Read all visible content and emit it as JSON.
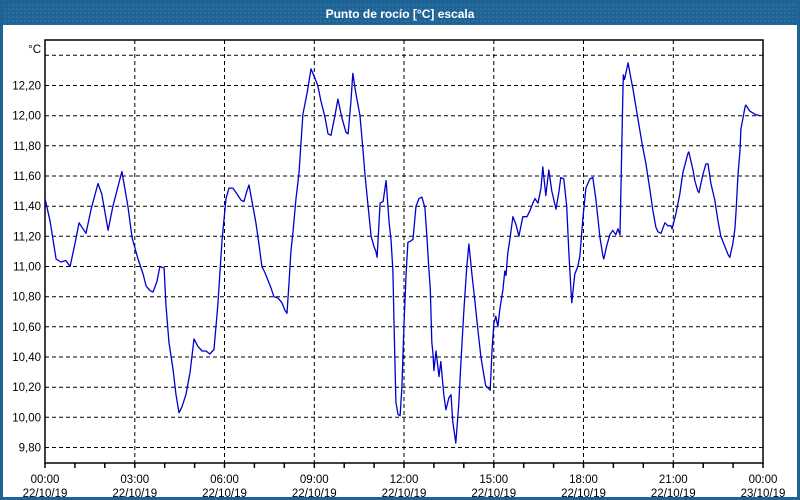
{
  "window": {
    "title": "Punto de rocío [°C] escala",
    "titlebar_color": "#1e6396",
    "border_color": "#1e6396",
    "background_color": "#ffffff"
  },
  "chart_data": {
    "type": "line",
    "title": "Punto de rocío [°C] escala",
    "xlabel": "",
    "ylabel": "°C",
    "legend": "none",
    "grid": "dashed",
    "x_axis": {
      "range_hours": [
        0,
        24
      ],
      "minor_tick_interval_hours": 1,
      "major_tick_interval_hours": 3,
      "ticks": [
        {
          "hours": 0,
          "time": "00:00",
          "date": "22/10/19"
        },
        {
          "hours": 3,
          "time": "03:00",
          "date": "22/10/19"
        },
        {
          "hours": 6,
          "time": "06:00",
          "date": "22/10/19"
        },
        {
          "hours": 9,
          "time": "09:00",
          "date": "22/10/19"
        },
        {
          "hours": 12,
          "time": "12:00",
          "date": "22/10/19"
        },
        {
          "hours": 15,
          "time": "15:00",
          "date": "22/10/19"
        },
        {
          "hours": 18,
          "time": "18:00",
          "date": "22/10/19"
        },
        {
          "hours": 21,
          "time": "21:00",
          "date": "22/10/19"
        },
        {
          "hours": 24,
          "time": "00:00",
          "date": "23/10/19"
        }
      ]
    },
    "y_axis": {
      "unit_label": "°C",
      "range": [
        9.67,
        12.49
      ],
      "gridline_values": [
        12.4,
        12.2,
        12.0,
        11.8,
        11.6,
        11.4,
        11.2,
        11.0,
        10.8,
        10.6,
        10.4,
        10.2,
        10.0,
        9.8
      ],
      "tick_labels": [
        {
          "value": 12.2,
          "label": "12,20"
        },
        {
          "value": 12.0,
          "label": "12,00"
        },
        {
          "value": 11.8,
          "label": "11,80"
        },
        {
          "value": 11.6,
          "label": "11,60"
        },
        {
          "value": 11.4,
          "label": "11,40"
        },
        {
          "value": 11.2,
          "label": "11,20"
        },
        {
          "value": 11.0,
          "label": "11,00"
        },
        {
          "value": 10.8,
          "label": "10,80"
        },
        {
          "value": 10.6,
          "label": "10,60"
        },
        {
          "value": 10.4,
          "label": "10,40"
        },
        {
          "value": 10.2,
          "label": "10,20"
        },
        {
          "value": 10.0,
          "label": "10,00"
        },
        {
          "value": 9.8,
          "label": "9,80"
        }
      ]
    },
    "colors": {
      "line": "#0000cd",
      "grid": "#000000",
      "text": "#000000",
      "plot_border": "#000000",
      "background": "#ffffff"
    },
    "series": [
      {
        "name": "Punto de rocío [°C]",
        "points": [
          [
            0.0,
            11.45
          ],
          [
            0.17,
            11.3
          ],
          [
            0.37,
            11.05
          ],
          [
            0.53,
            11.03
          ],
          [
            0.7,
            11.04
          ],
          [
            0.84,
            11.0
          ],
          [
            1.0,
            11.15
          ],
          [
            1.14,
            11.29
          ],
          [
            1.27,
            11.25
          ],
          [
            1.37,
            11.22
          ],
          [
            1.54,
            11.38
          ],
          [
            1.77,
            11.55
          ],
          [
            1.9,
            11.48
          ],
          [
            2.11,
            11.24
          ],
          [
            2.27,
            11.4
          ],
          [
            2.57,
            11.63
          ],
          [
            2.77,
            11.4
          ],
          [
            2.91,
            11.19
          ],
          [
            3.11,
            11.05
          ],
          [
            3.28,
            10.95
          ],
          [
            3.38,
            10.87
          ],
          [
            3.51,
            10.84
          ],
          [
            3.61,
            10.83
          ],
          [
            3.74,
            10.9
          ],
          [
            3.84,
            11.0
          ],
          [
            3.98,
            10.99
          ],
          [
            4.04,
            10.75
          ],
          [
            4.14,
            10.5
          ],
          [
            4.28,
            10.32
          ],
          [
            4.38,
            10.15
          ],
          [
            4.48,
            10.03
          ],
          [
            4.58,
            10.07
          ],
          [
            4.71,
            10.15
          ],
          [
            4.85,
            10.3
          ],
          [
            4.98,
            10.52
          ],
          [
            5.11,
            10.47
          ],
          [
            5.25,
            10.44
          ],
          [
            5.38,
            10.44
          ],
          [
            5.51,
            10.42
          ],
          [
            5.65,
            10.45
          ],
          [
            5.78,
            10.75
          ],
          [
            5.92,
            11.18
          ],
          [
            6.05,
            11.45
          ],
          [
            6.15,
            11.52
          ],
          [
            6.28,
            11.52
          ],
          [
            6.42,
            11.48
          ],
          [
            6.55,
            11.44
          ],
          [
            6.65,
            11.43
          ],
          [
            6.75,
            11.5
          ],
          [
            6.82,
            11.54
          ],
          [
            6.95,
            11.4
          ],
          [
            7.05,
            11.29
          ],
          [
            7.15,
            11.15
          ],
          [
            7.25,
            11.0
          ],
          [
            7.35,
            10.96
          ],
          [
            7.45,
            10.91
          ],
          [
            7.55,
            10.86
          ],
          [
            7.65,
            10.8
          ],
          [
            7.79,
            10.79
          ],
          [
            7.92,
            10.76
          ],
          [
            8.02,
            10.71
          ],
          [
            8.09,
            10.69
          ],
          [
            8.16,
            10.9
          ],
          [
            8.22,
            11.1
          ],
          [
            8.29,
            11.23
          ],
          [
            8.39,
            11.45
          ],
          [
            8.49,
            11.62
          ],
          [
            8.62,
            12.01
          ],
          [
            8.76,
            12.15
          ],
          [
            8.89,
            12.31
          ],
          [
            9.02,
            12.25
          ],
          [
            9.12,
            12.2
          ],
          [
            9.22,
            12.1
          ],
          [
            9.36,
            11.99
          ],
          [
            9.46,
            11.88
          ],
          [
            9.56,
            11.87
          ],
          [
            9.69,
            12.0
          ],
          [
            9.79,
            12.11
          ],
          [
            9.93,
            11.98
          ],
          [
            10.06,
            11.89
          ],
          [
            10.13,
            11.88
          ],
          [
            10.23,
            12.1
          ],
          [
            10.29,
            12.28
          ],
          [
            10.39,
            12.15
          ],
          [
            10.53,
            12.0
          ],
          [
            10.63,
            11.77
          ],
          [
            10.7,
            11.6
          ],
          [
            10.8,
            11.4
          ],
          [
            10.9,
            11.2
          ],
          [
            11.0,
            11.13
          ],
          [
            11.06,
            11.1
          ],
          [
            11.1,
            11.06
          ],
          [
            11.2,
            11.42
          ],
          [
            11.3,
            11.43
          ],
          [
            11.4,
            11.57
          ],
          [
            11.5,
            11.3
          ],
          [
            11.57,
            11.17
          ],
          [
            11.63,
            10.97
          ],
          [
            11.67,
            10.6
          ],
          [
            11.73,
            10.1
          ],
          [
            11.8,
            10.02
          ],
          [
            11.87,
            10.01
          ],
          [
            11.93,
            10.2
          ],
          [
            12.0,
            10.62
          ],
          [
            12.07,
            10.95
          ],
          [
            12.13,
            11.16
          ],
          [
            12.23,
            11.17
          ],
          [
            12.3,
            11.18
          ],
          [
            12.4,
            11.4
          ],
          [
            12.5,
            11.45
          ],
          [
            12.6,
            11.46
          ],
          [
            12.7,
            11.39
          ],
          [
            12.77,
            11.19
          ],
          [
            12.83,
            10.99
          ],
          [
            12.88,
            10.85
          ],
          [
            12.93,
            10.5
          ],
          [
            12.97,
            10.42
          ],
          [
            13.0,
            10.31
          ],
          [
            13.07,
            10.44
          ],
          [
            13.17,
            10.27
          ],
          [
            13.23,
            10.37
          ],
          [
            13.33,
            10.15
          ],
          [
            13.4,
            10.05
          ],
          [
            13.5,
            10.13
          ],
          [
            13.57,
            10.15
          ],
          [
            13.63,
            9.97
          ],
          [
            13.73,
            9.83
          ],
          [
            13.83,
            10.08
          ],
          [
            13.9,
            10.35
          ],
          [
            14.0,
            10.7
          ],
          [
            14.1,
            11.0
          ],
          [
            14.17,
            11.15
          ],
          [
            14.27,
            10.95
          ],
          [
            14.37,
            10.77
          ],
          [
            14.47,
            10.58
          ],
          [
            14.57,
            10.4
          ],
          [
            14.67,
            10.28
          ],
          [
            14.73,
            10.21
          ],
          [
            14.83,
            10.19
          ],
          [
            14.88,
            10.18
          ],
          [
            14.94,
            10.44
          ],
          [
            15.0,
            10.62
          ],
          [
            15.07,
            10.67
          ],
          [
            15.14,
            10.6
          ],
          [
            15.2,
            10.71
          ],
          [
            15.31,
            10.85
          ],
          [
            15.37,
            10.97
          ],
          [
            15.41,
            10.94
          ],
          [
            15.47,
            11.09
          ],
          [
            15.54,
            11.18
          ],
          [
            15.64,
            11.33
          ],
          [
            15.74,
            11.28
          ],
          [
            15.84,
            11.2
          ],
          [
            15.97,
            11.33
          ],
          [
            16.11,
            11.33
          ],
          [
            16.21,
            11.37
          ],
          [
            16.31,
            11.42
          ],
          [
            16.38,
            11.45
          ],
          [
            16.48,
            11.42
          ],
          [
            16.58,
            11.52
          ],
          [
            16.64,
            11.66
          ],
          [
            16.74,
            11.47
          ],
          [
            16.84,
            11.64
          ],
          [
            16.94,
            11.5
          ],
          [
            17.08,
            11.38
          ],
          [
            17.18,
            11.5
          ],
          [
            17.24,
            11.59
          ],
          [
            17.34,
            11.58
          ],
          [
            17.44,
            11.4
          ],
          [
            17.51,
            11.1
          ],
          [
            17.58,
            10.85
          ],
          [
            17.61,
            10.76
          ],
          [
            17.71,
            10.95
          ],
          [
            17.81,
            11.0
          ],
          [
            17.88,
            11.07
          ],
          [
            17.98,
            11.32
          ],
          [
            18.08,
            11.52
          ],
          [
            18.21,
            11.58
          ],
          [
            18.31,
            11.59
          ],
          [
            18.41,
            11.45
          ],
          [
            18.48,
            11.32
          ],
          [
            18.55,
            11.19
          ],
          [
            18.65,
            11.07
          ],
          [
            18.68,
            11.05
          ],
          [
            18.78,
            11.14
          ],
          [
            18.88,
            11.21
          ],
          [
            18.98,
            11.24
          ],
          [
            19.08,
            11.21
          ],
          [
            19.15,
            11.25
          ],
          [
            19.22,
            11.21
          ],
          [
            19.26,
            11.6
          ],
          [
            19.3,
            12.0
          ],
          [
            19.33,
            12.27
          ],
          [
            19.37,
            12.24
          ],
          [
            19.49,
            12.35
          ],
          [
            19.58,
            12.25
          ],
          [
            19.65,
            12.18
          ],
          [
            19.82,
            11.98
          ],
          [
            19.98,
            11.79
          ],
          [
            20.08,
            11.69
          ],
          [
            20.22,
            11.51
          ],
          [
            20.32,
            11.37
          ],
          [
            20.42,
            11.26
          ],
          [
            20.49,
            11.23
          ],
          [
            20.59,
            11.22
          ],
          [
            20.72,
            11.29
          ],
          [
            20.82,
            11.27
          ],
          [
            20.92,
            11.27
          ],
          [
            20.96,
            11.25
          ],
          [
            21.09,
            11.35
          ],
          [
            21.22,
            11.48
          ],
          [
            21.32,
            11.62
          ],
          [
            21.49,
            11.75
          ],
          [
            21.52,
            11.76
          ],
          [
            21.66,
            11.64
          ],
          [
            21.72,
            11.57
          ],
          [
            21.82,
            11.5
          ],
          [
            21.86,
            11.49
          ],
          [
            21.99,
            11.61
          ],
          [
            22.09,
            11.68
          ],
          [
            22.16,
            11.68
          ],
          [
            22.26,
            11.55
          ],
          [
            22.39,
            11.44
          ],
          [
            22.49,
            11.31
          ],
          [
            22.59,
            11.2
          ],
          [
            22.73,
            11.13
          ],
          [
            22.83,
            11.08
          ],
          [
            22.89,
            11.06
          ],
          [
            22.99,
            11.15
          ],
          [
            23.06,
            11.25
          ],
          [
            23.1,
            11.37
          ],
          [
            23.16,
            11.6
          ],
          [
            23.23,
            11.77
          ],
          [
            23.26,
            11.91
          ],
          [
            23.4,
            12.06
          ],
          [
            23.43,
            12.07
          ],
          [
            23.56,
            12.03
          ],
          [
            23.73,
            12.01
          ],
          [
            23.9,
            12.0
          ]
        ]
      }
    ]
  }
}
